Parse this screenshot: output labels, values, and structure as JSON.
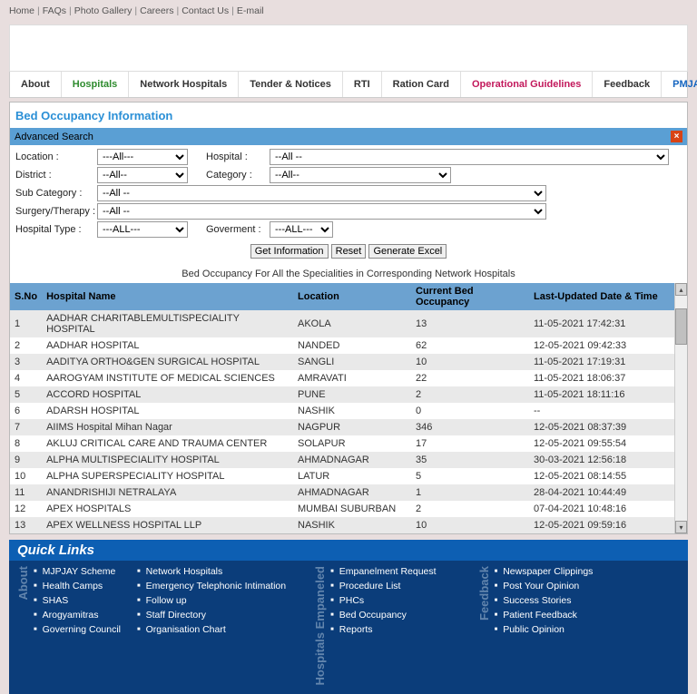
{
  "top_nav": [
    "Home",
    "FAQs",
    "Photo Gallery",
    "Careers",
    "Contact Us",
    "E-mail"
  ],
  "tabs": [
    {
      "label": "About",
      "cls": ""
    },
    {
      "label": "Hospitals",
      "cls": "green"
    },
    {
      "label": "Network Hospitals",
      "cls": ""
    },
    {
      "label": "Tender & Notices",
      "cls": ""
    },
    {
      "label": "RTI",
      "cls": ""
    },
    {
      "label": "Ration Card",
      "cls": ""
    },
    {
      "label": "Operational Guidelines",
      "cls": "pink"
    },
    {
      "label": "Feedback",
      "cls": ""
    },
    {
      "label": "PMJAY",
      "cls": "blue"
    }
  ],
  "page_title": "Bed Occupancy Information",
  "adv_search_label": "Advanced Search",
  "filters": {
    "location_lbl": "Location :",
    "location_val": "---All---",
    "hospital_lbl": "Hospital :",
    "hospital_val": "--All --",
    "district_lbl": "District :",
    "district_val": "--All--",
    "category_lbl": "Category :",
    "category_val": "--All--",
    "subcat_lbl": "Sub Category :",
    "subcat_val": "--All --",
    "surgery_lbl": "Surgery/Therapy :",
    "surgery_val": "--All --",
    "hosptype_lbl": "Hospital Type :",
    "hosptype_val": "---ALL---",
    "govt_lbl": "Goverment :",
    "govt_val": "---ALL---"
  },
  "buttons": {
    "get": "Get Information",
    "reset": "Reset",
    "excel": "Generate Excel"
  },
  "sub_title": "Bed Occupancy For All the Specialities in Corresponding Network Hospitals",
  "columns": [
    "S.No",
    "Hospital Name",
    "Location",
    "Current Bed Occupancy",
    "Last-Updated Date & Time"
  ],
  "rows": [
    [
      "1",
      "AADHAR CHARITABLEMULTISPECIALITY HOSPITAL",
      "AKOLA",
      "13",
      "11-05-2021 17:42:31"
    ],
    [
      "2",
      "AADHAR HOSPITAL",
      "NANDED",
      "62",
      "12-05-2021 09:42:33"
    ],
    [
      "3",
      "AADITYA ORTHO&GEN SURGICAL HOSPITAL",
      "SANGLI",
      "10",
      "11-05-2021 17:19:31"
    ],
    [
      "4",
      "AAROGYAM INSTITUTE OF MEDICAL SCIENCES",
      "AMRAVATI",
      "22",
      "11-05-2021 18:06:37"
    ],
    [
      "5",
      "ACCORD HOSPITAL",
      "PUNE",
      "2",
      "11-05-2021 18:11:16"
    ],
    [
      "6",
      "ADARSH HOSPITAL",
      "NASHIK",
      "0",
      "--"
    ],
    [
      "7",
      "AIIMS Hospital Mihan Nagar",
      "NAGPUR",
      "346",
      "12-05-2021 08:37:39"
    ],
    [
      "8",
      "AKLUJ CRITICAL CARE AND TRAUMA CENTER",
      "SOLAPUR",
      "17",
      "12-05-2021 09:55:54"
    ],
    [
      "9",
      "ALPHA MULTISPECIALITY HOSPITAL",
      "AHMADNAGAR",
      "35",
      "30-03-2021 12:56:18"
    ],
    [
      "10",
      "ALPHA SUPERSPECIALITY HOSPITAL",
      "LATUR",
      "5",
      "12-05-2021 08:14:55"
    ],
    [
      "11",
      "ANANDRISHIJI NETRALAYA",
      "AHMADNAGAR",
      "1",
      "28-04-2021 10:44:49"
    ],
    [
      "12",
      "APEX HOSPITALS",
      "MUMBAI SUBURBAN",
      "2",
      "07-04-2021 10:48:16"
    ],
    [
      "13",
      "APEX WELLNESS HOSPITAL LLP",
      "NASHIK",
      "10",
      "12-05-2021 09:59:16"
    ]
  ],
  "quick_title": "Quick Links",
  "quick_groups": [
    {
      "side": "About",
      "cols": [
        [
          "MJPJAY Scheme",
          "Health Camps",
          "SHAS",
          "Arogyamitras",
          "Governing Council"
        ],
        [
          "Network Hospitals",
          "Emergency Telephonic Intimation",
          "Follow up",
          "Staff Directory",
          "Organisation Chart"
        ]
      ]
    },
    {
      "side": "Hospitals Empaneled",
      "cols": [
        [
          "Empanelment Request",
          "Procedure List",
          "PHCs",
          "Bed Occupancy",
          "Reports"
        ]
      ]
    },
    {
      "side": "Feedback",
      "cols": [
        [
          "Newspaper Clippings",
          "Post Your Opinion",
          "Success Stories",
          "Patient Feedback",
          "Public Opinion"
        ]
      ]
    }
  ]
}
